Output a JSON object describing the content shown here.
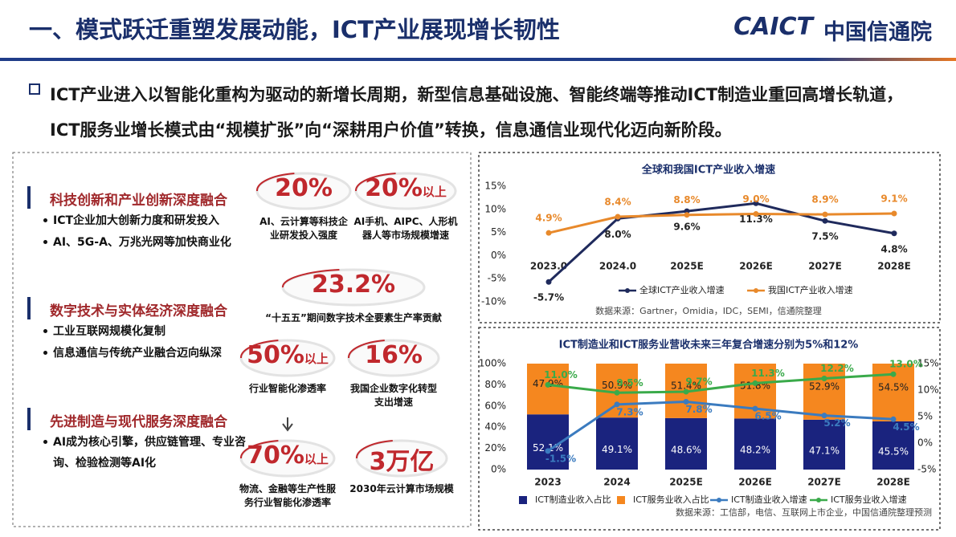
{
  "header": {
    "title": "一、模式跃迁重塑发展动能，ICT产业展现增长韧性",
    "logo_en": "CAICT",
    "logo_cn": "中国信通院"
  },
  "intro": "ICT产业进入以智能化重构为驱动的新增长周期，新型信息基础设施、智能终端等推动ICT制造业重回高增长轨道，ICT服务业增长模式由“规模扩张”向“深耕用户价值”转换，信息通信业现代化迈向新阶段。",
  "left_panel": {
    "sections": [
      {
        "heading": "科技创新和产业创新深度融合",
        "bullets": [
          "ICT企业加大创新力度和研发投入",
          "AI、5G-A、万兆光网等加快商业化"
        ]
      },
      {
        "heading": "数字技术与实体经济深度融合",
        "bullets": [
          "工业互联网规模化复制",
          "信息通信与传统产业融合迈向纵深"
        ]
      },
      {
        "heading": "先进制造与现代服务深度融合",
        "bullets": [
          "AI成为核心引擎，供应链管理、专业咨询、检验检测等AI化"
        ]
      }
    ],
    "stats": [
      {
        "value": "20%",
        "caption": "AI、云计算等科技企业研发投入强度"
      },
      {
        "value": "20%",
        "suffix": "以上",
        "caption": "AI手机、AIPC、人形机器人等市场规模增速"
      },
      {
        "value": "23.2%",
        "caption": "“十五五”期间数字技术全要素生产率贡献"
      },
      {
        "value": "50%",
        "suffix": "以上",
        "caption": "行业智能化渗透率"
      },
      {
        "value": "16%",
        "caption": "我国企业数字化转型支出增速"
      },
      {
        "value": "70%",
        "suffix": "以上",
        "caption": "物流、金融等生产性服务行业智能化渗透率"
      },
      {
        "value": "3万亿",
        "caption": "2030年云计算市场规模"
      }
    ]
  },
  "chart_data": [
    {
      "type": "line",
      "title": "全球和我国ICT产业收入增速",
      "categories": [
        "2023.0",
        "2024.0",
        "2025E",
        "2026E",
        "2027E",
        "2028E"
      ],
      "series": [
        {
          "name": "全球ICT产业收入增速",
          "color": "#1f2a5c",
          "values": [
            -5.7,
            8.0,
            9.6,
            11.3,
            7.5,
            4.8
          ],
          "value_labels": [
            "-5.7%",
            "8.0%",
            "9.6%",
            "11.3%",
            "7.5%",
            "4.8%"
          ]
        },
        {
          "name": "我国ICT产业收入增速",
          "color": "#e8892b",
          "values": [
            4.9,
            8.4,
            8.8,
            9.0,
            8.9,
            9.1
          ],
          "value_labels": [
            "4.9%",
            "8.4%",
            "8.8%",
            "9.0%",
            "8.9%",
            "9.1%"
          ]
        }
      ],
      "ylim": [
        -10,
        15
      ],
      "yticks": [
        {
          "value": -10,
          "label": "-10%"
        },
        {
          "value": -5,
          "label": "-5%"
        },
        {
          "value": 0,
          "label": "0%"
        },
        {
          "value": 5,
          "label": "5%"
        },
        {
          "value": 10,
          "label": "10%"
        },
        {
          "value": 15,
          "label": "15%"
        }
      ],
      "source": "数据来源：Gartner，Omidia，IDC，SEMI，信通院整理"
    },
    {
      "type": "bar",
      "stacked": true,
      "title": "ICT制造业和ICT服务业营收未来三年复合增速分别为5%和12%",
      "categories": [
        "2023",
        "2024",
        "2025E",
        "2026E",
        "2027E",
        "2028E"
      ],
      "series": [
        {
          "name": "ICT制造业收入占比",
          "color": "#1a237e",
          "values": [
            52.1,
            49.1,
            48.6,
            48.2,
            47.1,
            45.5
          ],
          "value_labels": [
            "52.1%",
            "49.1%",
            "48.6%",
            "48.2%",
            "47.1%",
            "45.5%"
          ]
        },
        {
          "name": "ICT服务业收入占比",
          "color": "#f5871f",
          "values": [
            47.9,
            50.9,
            51.4,
            51.8,
            52.9,
            54.5
          ],
          "value_labels": [
            "47.9%",
            "50.9%",
            "51.4%",
            "51.8%",
            "52.9%",
            "54.5%"
          ]
        },
        {
          "name": "ICT制造业收入增速",
          "type": "line",
          "axis": "y2",
          "color": "#3b7bbf",
          "values": [
            -1.5,
            7.3,
            7.8,
            6.5,
            5.2,
            4.5
          ],
          "value_labels": [
            "-1.5%",
            "7.3%",
            "7.8%",
            "6.5%",
            "5.2%",
            "4.5%"
          ]
        },
        {
          "name": "ICT服务业收入增速",
          "type": "line",
          "axis": "y2",
          "color": "#3aaa4a",
          "values": [
            11.0,
            9.5,
            9.7,
            11.3,
            12.2,
            13.0
          ],
          "value_labels": [
            "11.0%",
            "9.5%",
            "9.7%",
            "11.3%",
            "12.2%",
            "13.0%"
          ]
        }
      ],
      "ylim": [
        0,
        100
      ],
      "yticks": [
        {
          "value": 0,
          "label": "0%"
        },
        {
          "value": 20,
          "label": "20%"
        },
        {
          "value": 40,
          "label": "40%"
        },
        {
          "value": 60,
          "label": "60%"
        },
        {
          "value": 80,
          "label": "80%"
        },
        {
          "value": 100,
          "label": "100%"
        }
      ],
      "y2lim": [
        -5,
        15
      ],
      "y2ticks": [
        {
          "value": -5,
          "label": "-5%"
        },
        {
          "value": 0,
          "label": "0%"
        },
        {
          "value": 5,
          "label": "5%"
        },
        {
          "value": 10,
          "label": "10%"
        },
        {
          "value": 15,
          "label": "15%"
        }
      ],
      "source": "数据来源：工信部，电信、互联网上市企业，中国信通院整理预测"
    }
  ]
}
